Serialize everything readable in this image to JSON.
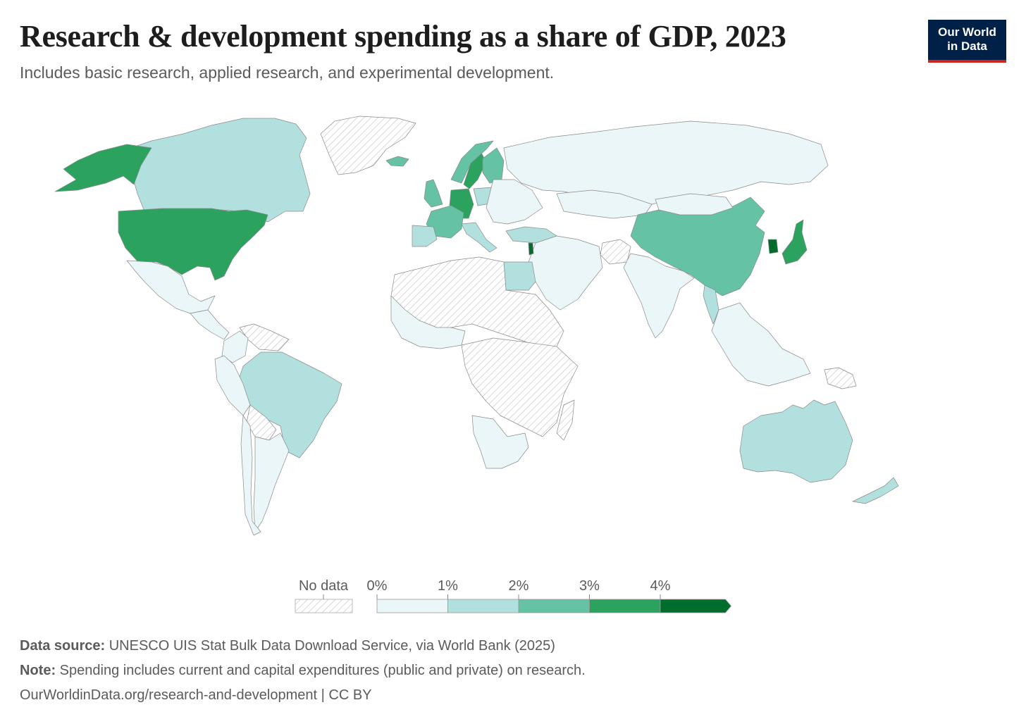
{
  "header": {
    "title": "Research & development spending as a share of GDP, 2023",
    "subtitle": "Includes basic research, applied research, and experimental development.",
    "logo_line1": "Our World",
    "logo_line2": "in Data"
  },
  "colors": {
    "no_data_hatch": "#c8c8c8",
    "bin_0_1": "#ebf6f8",
    "bin_1_2": "#b2e0df",
    "bin_2_3": "#66c2a4",
    "bin_3_4": "#2ca25f",
    "bin_4_plus": "#006d2c",
    "brand_navy": "#002147",
    "brand_red": "#ce261e"
  },
  "chart_data": {
    "type": "choropleth",
    "title": "Research & development spending as a share of GDP, 2023",
    "unit": "% of GDP",
    "legend": {
      "no_data_label": "No data",
      "bins": [
        {
          "label": "0%",
          "min": 0,
          "max": 1
        },
        {
          "label": "1%",
          "min": 1,
          "max": 2
        },
        {
          "label": "2%",
          "min": 2,
          "max": 3
        },
        {
          "label": "3%",
          "min": 3,
          "max": 4
        },
        {
          "label": "4%",
          "min": 4,
          "max": null
        }
      ]
    },
    "regions": [
      {
        "name": "Canada",
        "bin": "1-2%"
      },
      {
        "name": "United States",
        "bin": "3-4%"
      },
      {
        "name": "Alaska (United States)",
        "bin": "3-4%"
      },
      {
        "name": "Greenland",
        "bin": "no data"
      },
      {
        "name": "Mexico",
        "bin": "0-1%"
      },
      {
        "name": "Central America",
        "bin": "0-1%"
      },
      {
        "name": "Venezuela",
        "bin": "no data"
      },
      {
        "name": "Colombia",
        "bin": "0-1%"
      },
      {
        "name": "Brazil",
        "bin": "1-2%"
      },
      {
        "name": "Peru",
        "bin": "0-1%"
      },
      {
        "name": "Bolivia",
        "bin": "no data"
      },
      {
        "name": "Argentina",
        "bin": "0-1%"
      },
      {
        "name": "Chile",
        "bin": "0-1%"
      },
      {
        "name": "Iceland",
        "bin": "2-3%"
      },
      {
        "name": "Sweden",
        "bin": "3-4%"
      },
      {
        "name": "Norway",
        "bin": "2-3%"
      },
      {
        "name": "Finland",
        "bin": "2-3%"
      },
      {
        "name": "United Kingdom",
        "bin": "2-3%"
      },
      {
        "name": "Germany",
        "bin": "3-4%"
      },
      {
        "name": "France",
        "bin": "2-3%"
      },
      {
        "name": "Spain",
        "bin": "1-2%"
      },
      {
        "name": "Italy",
        "bin": "1-2%"
      },
      {
        "name": "Poland",
        "bin": "1-2%"
      },
      {
        "name": "Eastern Europe",
        "bin": "0-1%"
      },
      {
        "name": "Turkey",
        "bin": "1-2%"
      },
      {
        "name": "Russia",
        "bin": "0-1%"
      },
      {
        "name": "Kazakhstan",
        "bin": "0-1%"
      },
      {
        "name": "Middle East",
        "bin": "0-1%"
      },
      {
        "name": "Israel",
        "bin": "4%+"
      },
      {
        "name": "Egypt",
        "bin": "1-2%"
      },
      {
        "name": "Saharan Africa",
        "bin": "no data"
      },
      {
        "name": "West Africa",
        "bin": "0-1%"
      },
      {
        "name": "East Africa",
        "bin": "0-1%"
      },
      {
        "name": "Central Africa",
        "bin": "no data"
      },
      {
        "name": "Southern Africa",
        "bin": "0-1%"
      },
      {
        "name": "Madagascar",
        "bin": "no data"
      },
      {
        "name": "Afghanistan",
        "bin": "no data"
      },
      {
        "name": "India",
        "bin": "0-1%"
      },
      {
        "name": "China",
        "bin": "2-3%"
      },
      {
        "name": "Mongolia",
        "bin": "0-1%"
      },
      {
        "name": "South Korea",
        "bin": "4%+"
      },
      {
        "name": "Japan",
        "bin": "3-4%"
      },
      {
        "name": "Thailand",
        "bin": "1-2%"
      },
      {
        "name": "Southeast Asia",
        "bin": "0-1%"
      },
      {
        "name": "Papua New Guinea",
        "bin": "no data"
      },
      {
        "name": "Australia",
        "bin": "1-2%"
      },
      {
        "name": "New Zealand",
        "bin": "1-2%"
      }
    ]
  },
  "footer": {
    "source_label": "Data source:",
    "source_text": "UNESCO UIS Stat Bulk Data Download Service, via World Bank (2025)",
    "note_label": "Note:",
    "note_text": "Spending includes current and capital expenditures (public and private) on research.",
    "url_text": "OurWorldinData.org/research-and-development | CC BY"
  }
}
